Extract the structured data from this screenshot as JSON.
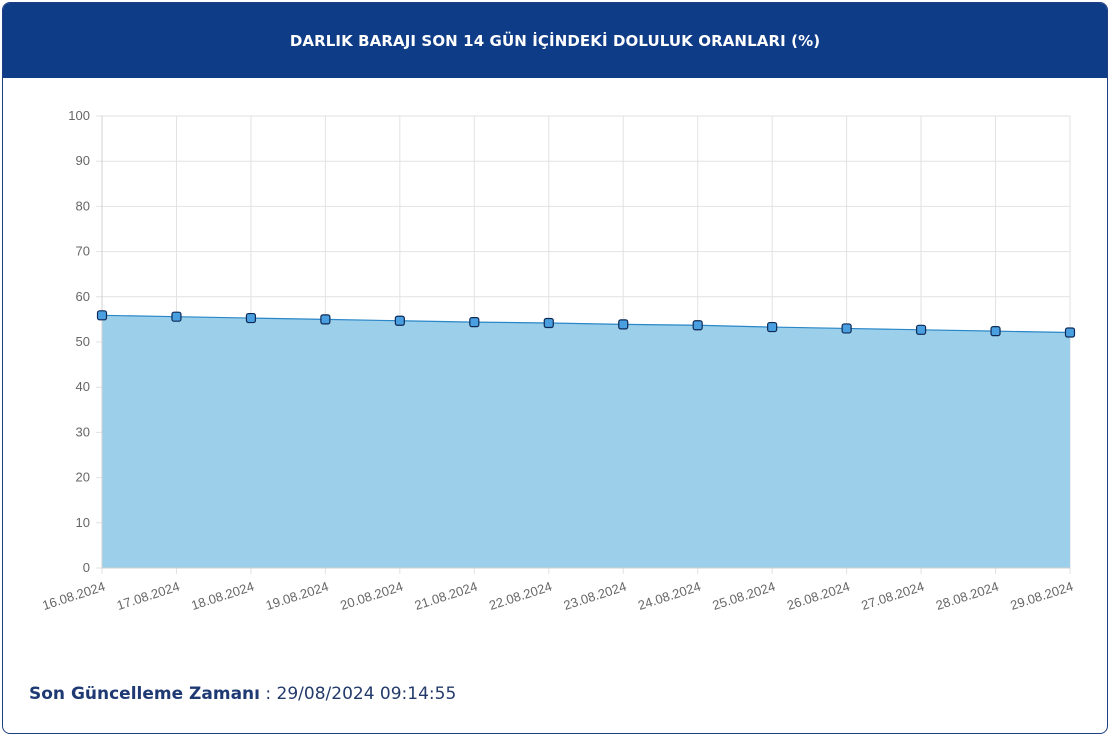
{
  "header": {
    "title": "DARLIK BARAJI SON 14 GÜN İÇİNDEKİ DOLULUK ORANLARI (%)"
  },
  "footer": {
    "label": "Son Güncelleme Zamanı",
    "separator": " : ",
    "value": "29/08/2024 09:14:55"
  },
  "colors": {
    "header_bg": "#0f3c87",
    "area_fill": "#9ccfea",
    "line": "#2a87c8",
    "marker_fill": "#4a9fe0",
    "marker_stroke": "#0d2a55",
    "grid": "#e2e2e2"
  },
  "chart_data": {
    "type": "area",
    "categories": [
      "16.08.2024",
      "17.08.2024",
      "18.08.2024",
      "19.08.2024",
      "20.08.2024",
      "21.08.2024",
      "22.08.2024",
      "23.08.2024",
      "24.08.2024",
      "25.08.2024",
      "26.08.2024",
      "27.08.2024",
      "28.08.2024",
      "29.08.2024"
    ],
    "series": [
      {
        "values": [
          55.9,
          55.6,
          55.3,
          55.0,
          54.7,
          54.4,
          54.2,
          53.9,
          53.7,
          53.3,
          53.0,
          52.7,
          52.4,
          52.1
        ]
      }
    ],
    "yticks": [
      0,
      10,
      20,
      30,
      40,
      50,
      60,
      70,
      80,
      90,
      100
    ],
    "ylim": [
      0,
      100
    ],
    "grid": true,
    "legend": "none"
  }
}
